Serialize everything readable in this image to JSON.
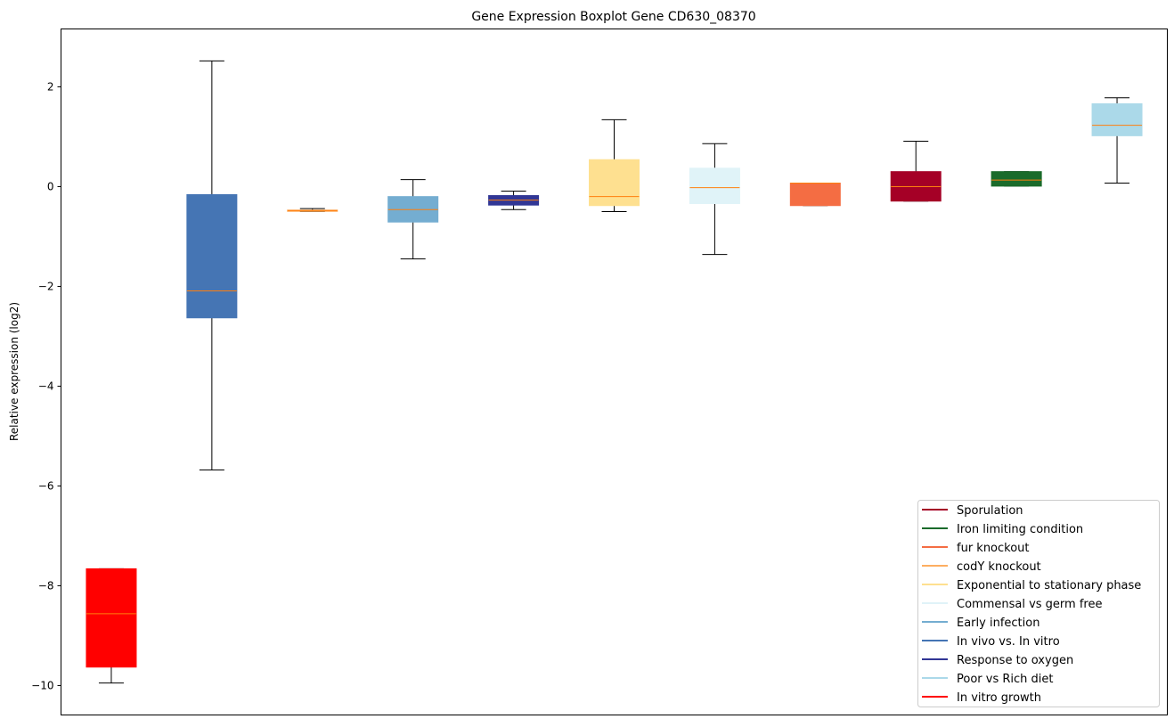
{
  "chart_data": {
    "type": "boxplot",
    "title": "Gene Expression Boxplot Gene CD630_08370",
    "xlabel": "",
    "ylabel": "Relative expression (log2)",
    "ylim": [
      -10.59,
      3.16
    ],
    "yticks": [
      2,
      0,
      -2,
      -4,
      -6,
      -8,
      -10
    ],
    "ytick_labels": [
      "2",
      "0",
      "−2",
      "−4",
      "−6",
      "−8",
      "−10"
    ],
    "grid": false,
    "legend_position": "lower-right",
    "series": [
      {
        "name": "In vitro growth",
        "color": "#ff0000",
        "whislo": -9.95,
        "q1": -9.63,
        "median": -8.56,
        "q3": -7.66,
        "whishi": -7.66
      },
      {
        "name": "In vivo vs. In vitro",
        "color": "#4575b4",
        "whislo": -5.68,
        "q1": -2.63,
        "median": -2.09,
        "q3": -0.16,
        "whishi": 2.52
      },
      {
        "name": "codY knockout",
        "color": "#fdae61",
        "whislo": -0.5,
        "q1": -0.49,
        "median": -0.48,
        "q3": -0.47,
        "whishi": -0.44
      },
      {
        "name": "Early infection",
        "color": "#74add1",
        "whislo": -1.45,
        "q1": -0.71,
        "median": -0.46,
        "q3": -0.2,
        "whishi": 0.14
      },
      {
        "name": "Response to oxygen",
        "color": "#313695",
        "whislo": -0.46,
        "q1": -0.37,
        "median": -0.27,
        "q3": -0.18,
        "whishi": -0.09
      },
      {
        "name": "Exponential to stationary phase",
        "color": "#fee090",
        "whislo": -0.5,
        "q1": -0.38,
        "median": -0.2,
        "q3": 0.54,
        "whishi": 1.34
      },
      {
        "name": "Commensal vs germ free",
        "color": "#e0f3f8",
        "whislo": -1.36,
        "q1": -0.34,
        "median": -0.02,
        "q3": 0.37,
        "whishi": 0.86
      },
      {
        "name": "fur knockout",
        "color": "#f46d43",
        "whislo": -0.38,
        "q1": -0.38,
        "median": 0.07,
        "q3": 0.07,
        "whishi": 0.07
      },
      {
        "name": "Sporulation",
        "color": "#a50026",
        "whislo": -0.29,
        "q1": -0.29,
        "median": 0.0,
        "q3": 0.3,
        "whishi": 0.91
      },
      {
        "name": "Iron limiting condition",
        "color": "#1a6b2b",
        "whislo": 0.01,
        "q1": 0.01,
        "median": 0.13,
        "q3": 0.3,
        "whishi": 0.3
      },
      {
        "name": "Poor vs Rich diet",
        "color": "#abd9e9",
        "whislo": 0.07,
        "q1": 1.02,
        "median": 1.23,
        "q3": 1.66,
        "whishi": 1.78
      }
    ],
    "median_color": "#ff7f0e",
    "legend": [
      {
        "label": "Sporulation",
        "color": "#a50026"
      },
      {
        "label": "Iron limiting condition",
        "color": "#1a6b2b"
      },
      {
        "label": "fur knockout",
        "color": "#f46d43"
      },
      {
        "label": "codY knockout",
        "color": "#fdae61"
      },
      {
        "label": "Exponential to stationary phase",
        "color": "#fee090"
      },
      {
        "label": "Commensal vs germ free",
        "color": "#e0f3f8"
      },
      {
        "label": "Early infection",
        "color": "#74add1"
      },
      {
        "label": "In vivo vs. In vitro",
        "color": "#4575b4"
      },
      {
        "label": "Response to oxygen",
        "color": "#313695"
      },
      {
        "label": "Poor vs Rich diet",
        "color": "#abd9e9"
      },
      {
        "label": "In vitro growth",
        "color": "#ff0000"
      }
    ]
  }
}
